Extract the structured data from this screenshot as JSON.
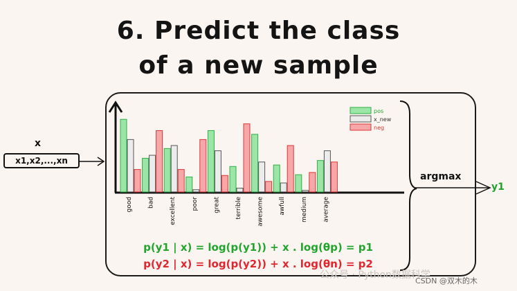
{
  "title": {
    "line1": "6. Predict the class",
    "line2": "of a new sample"
  },
  "input": {
    "label": "x",
    "box_text": "x1,x2,...,xn"
  },
  "output": {
    "argmax_label": "argmax",
    "result": "y1",
    "result_color": "#1fa32a"
  },
  "equations": {
    "pos": "p(y1 | x) = log(p(y1)) + x . log(θp) = p1",
    "neg": "p(y2 | x) = log(p(y2)) + x . log(θn) = p2",
    "pos_color": "#22a52d",
    "neg_color": "#e0262f"
  },
  "watermark": "公众号 · Python数据科学",
  "credit": "CSDN @双木的木",
  "chart_data": {
    "type": "bar",
    "categories": [
      "good",
      "bad",
      "excellent",
      "poor",
      "great",
      "terrible",
      "awesome",
      "awfull",
      "medium",
      "average"
    ],
    "series": [
      {
        "name": "pos",
        "values": [
          0.97,
          0.45,
          0.58,
          0.2,
          0.82,
          0.34,
          0.77,
          0.36,
          0.23,
          0.42
        ],
        "fill": "#9be6a6",
        "stroke": "#2fae45"
      },
      {
        "name": "x_new",
        "values": [
          0.7,
          0.49,
          0.62,
          0.03,
          0.55,
          0.05,
          0.4,
          0.12,
          0.02,
          0.55
        ],
        "fill": "#ececec",
        "stroke": "#555555"
      },
      {
        "name": "neg",
        "values": [
          0.3,
          0.82,
          0.3,
          0.7,
          0.22,
          0.91,
          0.14,
          0.62,
          0.26,
          0.4
        ],
        "fill": "#f7a7a7",
        "stroke": "#d83838"
      }
    ],
    "ylim": [
      0,
      1
    ]
  }
}
